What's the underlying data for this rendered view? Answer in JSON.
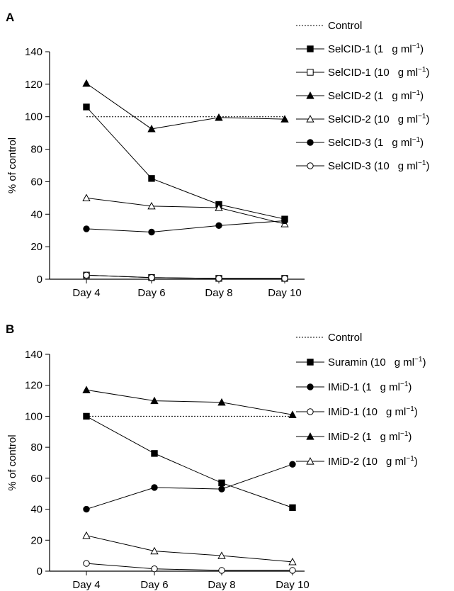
{
  "chart_data": [
    {
      "panel": "A",
      "type": "line",
      "categories": [
        "Day 4",
        "Day 6",
        "Day 8",
        "Day 10"
      ],
      "ylabel": "% of control",
      "ylim": [
        0,
        140
      ],
      "yticks": [
        0,
        20,
        40,
        60,
        80,
        100,
        120,
        140
      ],
      "grid": false,
      "legend_position": "right",
      "series": [
        {
          "name": "Control",
          "unit": "",
          "marker": "none",
          "dashed": true,
          "values": [
            100,
            100,
            100,
            100
          ]
        },
        {
          "name": "SelCID-1 (1",
          "unit": "g ml",
          "marker": "square-filled",
          "dashed": false,
          "values": [
            106,
            62,
            46,
            37
          ]
        },
        {
          "name": "SelCID-1 (10",
          "unit": "g ml",
          "marker": "square-open",
          "dashed": false,
          "values": [
            2.5,
            1,
            0.5,
            0.5
          ]
        },
        {
          "name": "SelCID-2 (1",
          "unit": "g ml",
          "marker": "triangle-filled",
          "dashed": false,
          "values": [
            120.5,
            92.5,
            99.5,
            98.5
          ]
        },
        {
          "name": "SelCID-2 (10",
          "unit": "g ml",
          "marker": "triangle-open",
          "dashed": false,
          "values": [
            50,
            45,
            44,
            34
          ]
        },
        {
          "name": "SelCID-3 (1",
          "unit": "g ml",
          "marker": "circle-filled",
          "dashed": false,
          "values": [
            31,
            29,
            33,
            36
          ]
        },
        {
          "name": "SelCID-3 (10",
          "unit": "g ml",
          "marker": "circle-open",
          "dashed": false,
          "values": [
            2.5,
            1,
            0.5,
            0.5
          ]
        }
      ]
    },
    {
      "panel": "B",
      "type": "line",
      "categories": [
        "Day 4",
        "Day 6",
        "Day 8",
        "Day 10"
      ],
      "ylabel": "% of control",
      "ylim": [
        0,
        140
      ],
      "yticks": [
        0,
        20,
        40,
        60,
        80,
        100,
        120,
        140
      ],
      "grid": false,
      "legend_position": "right",
      "series": [
        {
          "name": "Control",
          "unit": "",
          "marker": "none",
          "dashed": true,
          "values": [
            100,
            100,
            100,
            100
          ]
        },
        {
          "name": "Suramin (10",
          "unit": "g ml",
          "marker": "square-filled",
          "dashed": false,
          "values": [
            100,
            76,
            57,
            41
          ]
        },
        {
          "name": "IMiD-1 (1",
          "unit": "g ml",
          "marker": "circle-filled",
          "dashed": false,
          "values": [
            40,
            54,
            53,
            69
          ]
        },
        {
          "name": "IMiD-1 (10",
          "unit": "g ml",
          "marker": "circle-open",
          "dashed": false,
          "values": [
            5,
            1.5,
            0.5,
            0.5
          ]
        },
        {
          "name": "IMiD-2 (1",
          "unit": "g ml",
          "marker": "triangle-filled",
          "dashed": false,
          "values": [
            117,
            110,
            109,
            101
          ]
        },
        {
          "name": "IMiD-2 (10",
          "unit": "g ml",
          "marker": "triangle-open",
          "dashed": false,
          "values": [
            23,
            13,
            10,
            6
          ]
        }
      ]
    }
  ]
}
